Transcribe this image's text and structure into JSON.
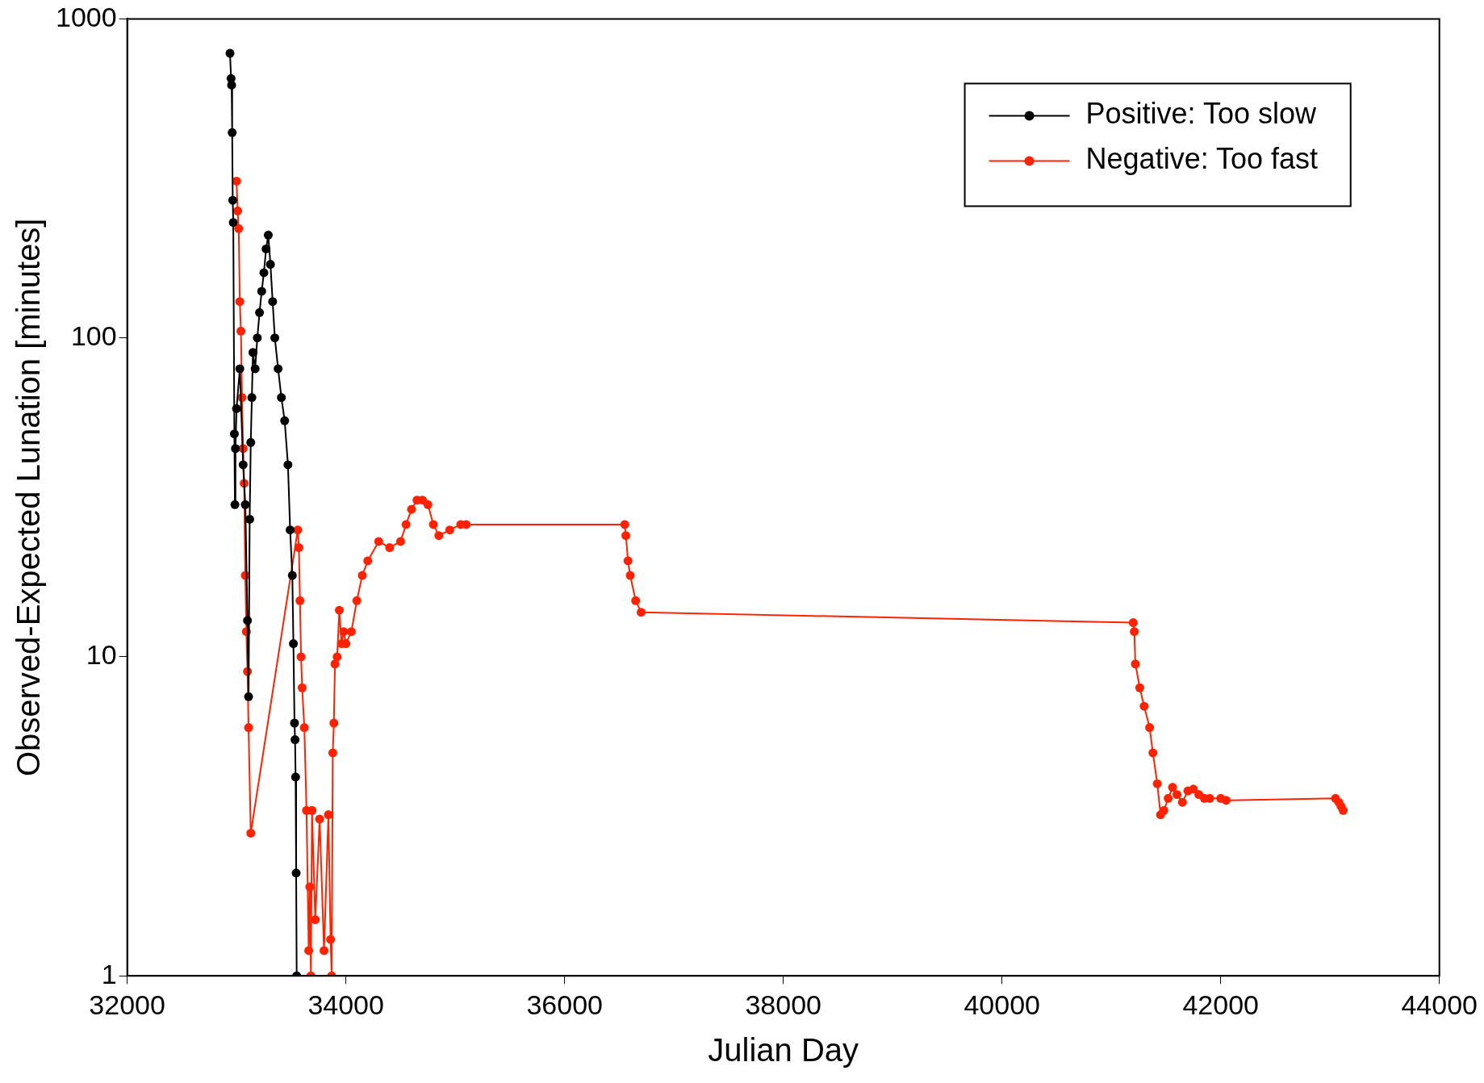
{
  "chart_data": {
    "type": "line",
    "xlabel": "Julian Day",
    "ylabel": "Observed-Expected Lunation [minutes]",
    "log": "y",
    "grid": false,
    "legend": "top right",
    "marker": "circle",
    "line_style": "solid",
    "xlim": [
      32000,
      44000
    ],
    "xticks": [
      32000,
      34000,
      36000,
      38000,
      40000,
      42000,
      44000
    ],
    "ylim": [
      1,
      1000
    ],
    "yticks": [
      1,
      10,
      100,
      1000
    ],
    "series": [
      {
        "name": "Positive: Too slow",
        "color": "#000000",
        "x": [
          32940,
          32950,
          32955,
          32960,
          32965,
          32970,
          32980,
          32985,
          32990,
          33000,
          33030,
          33060,
          33080,
          33100,
          33110,
          33120,
          33130,
          33140,
          33150,
          33170,
          33190,
          33210,
          33230,
          33250,
          33270,
          33290,
          33310,
          33330,
          33350,
          33380,
          33410,
          33440,
          33470,
          33490,
          33510,
          33520,
          33530,
          33535,
          33540,
          33545,
          33550
        ],
        "values": [
          780,
          650,
          620,
          440,
          270,
          230,
          50,
          30,
          45,
          60,
          80,
          40,
          30,
          13,
          7.5,
          27,
          47,
          65,
          90,
          80,
          100,
          120,
          140,
          160,
          190,
          210,
          170,
          130,
          100,
          80,
          65,
          55,
          40,
          25,
          18,
          11,
          6.2,
          5.5,
          4.2,
          2.1,
          1
        ]
      },
      {
        "name": "Negative: Too fast",
        "color": "#ff2200",
        "x": [
          33000,
          33010,
          33020,
          33030,
          33040,
          33050,
          33060,
          33070,
          33080,
          33090,
          33100,
          33110,
          33130,
          33560,
          33570,
          33580,
          33590,
          33600,
          33620,
          33640,
          33660,
          33670,
          33680,
          33690,
          33720,
          33760,
          33800,
          33840,
          33860,
          33870,
          33880,
          33890,
          33900,
          33920,
          33940,
          33960,
          33980,
          34000,
          34050,
          34100,
          34150,
          34200,
          34300,
          34400,
          34500,
          34550,
          34600,
          34650,
          34700,
          34750,
          34800,
          34850,
          34950,
          35050,
          35100,
          36550,
          36560,
          36580,
          36600,
          36650,
          36700,
          41200,
          41210,
          41220,
          41260,
          41300,
          41350,
          41380,
          41420,
          41450,
          41480,
          41520,
          41560,
          41600,
          41650,
          41700,
          41750,
          41800,
          41850,
          41900,
          42000,
          42050,
          43050,
          43080,
          43100,
          43120
        ],
        "values": [
          310,
          250,
          220,
          130,
          105,
          65,
          45,
          35,
          18,
          12,
          9,
          6,
          2.8,
          25,
          22,
          15,
          10,
          8,
          6,
          3.3,
          1.2,
          1.9,
          1,
          3.3,
          1.5,
          3.1,
          1.2,
          3.2,
          1.3,
          1,
          5,
          6.2,
          9.5,
          10,
          14,
          11,
          12,
          11,
          12,
          15,
          18,
          20,
          23,
          22,
          23,
          26,
          29,
          31,
          31,
          30,
          26,
          24,
          25,
          26,
          26,
          26,
          24,
          20,
          18,
          15,
          13.8,
          12.8,
          12,
          9.5,
          8,
          7,
          6,
          5,
          4,
          3.2,
          3.3,
          3.6,
          3.9,
          3.7,
          3.5,
          3.8,
          3.85,
          3.7,
          3.6,
          3.6,
          3.6,
          3.55,
          3.6,
          3.5,
          3.4,
          3.3
        ]
      }
    ]
  }
}
